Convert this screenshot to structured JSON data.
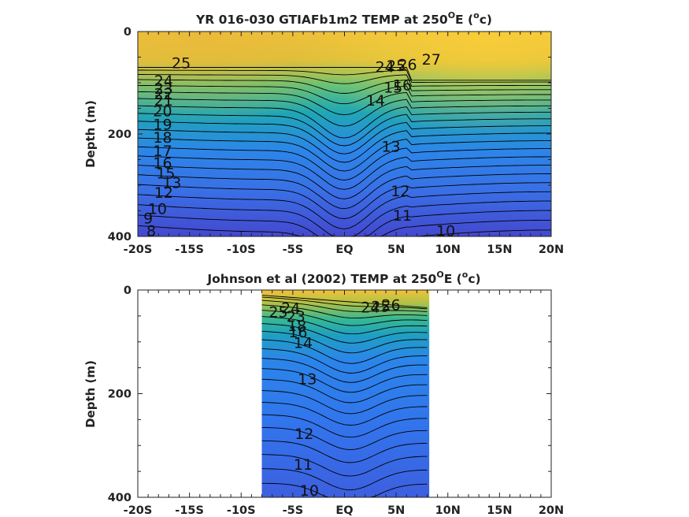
{
  "chart_data": [
    {
      "type": "contour",
      "title_main": "YR 016-030 GTIAFb1m2 TEMP at 250",
      "title_sup": "O",
      "title_mid": "E (",
      "title_unit_sup": "o",
      "title_end": "c)",
      "ylabel": "Depth (m)",
      "xlim": [
        -20,
        20
      ],
      "ylim": [
        0,
        400
      ],
      "y_reversed": true,
      "x_tick_values": [
        -20,
        -15,
        -10,
        -5,
        0,
        5,
        10,
        15,
        20
      ],
      "x_tick_labels": [
        "-20S",
        "-15S",
        "-10S",
        "-5S",
        "EQ",
        "5N",
        "10N",
        "15N",
        "20N"
      ],
      "y_tick_values": [
        0,
        200,
        400
      ],
      "y_tick_labels": [
        "0",
        "200",
        "400"
      ],
      "data_extent": [
        -20,
        20
      ],
      "contour_labels": [
        {
          "text": "25",
          "lat": -15.8,
          "depth": 62
        },
        {
          "text": "24",
          "lat": -17.5,
          "depth": 97
        },
        {
          "text": "23",
          "lat": -17.5,
          "depth": 112
        },
        {
          "text": "22",
          "lat": -17.5,
          "depth": 122
        },
        {
          "text": "21",
          "lat": -17.5,
          "depth": 135
        },
        {
          "text": "20",
          "lat": -17.6,
          "depth": 156
        },
        {
          "text": "19",
          "lat": -17.6,
          "depth": 182
        },
        {
          "text": "18",
          "lat": -17.6,
          "depth": 208
        },
        {
          "text": "17",
          "lat": -17.6,
          "depth": 234
        },
        {
          "text": "16",
          "lat": -17.6,
          "depth": 258
        },
        {
          "text": "15",
          "lat": -17.3,
          "depth": 278
        },
        {
          "text": "13",
          "lat": -16.7,
          "depth": 296
        },
        {
          "text": "12",
          "lat": -17.5,
          "depth": 315
        },
        {
          "text": "10",
          "lat": -18.1,
          "depth": 347
        },
        {
          "text": "9",
          "lat": -19.0,
          "depth": 365
        },
        {
          "text": "8",
          "lat": -18.7,
          "depth": 390
        },
        {
          "text": "24",
          "lat": 3.9,
          "depth": 70
        },
        {
          "text": "25",
          "lat": 5.0,
          "depth": 68
        },
        {
          "text": "26",
          "lat": 6.1,
          "depth": 65
        },
        {
          "text": "27",
          "lat": 8.4,
          "depth": 55
        },
        {
          "text": "15",
          "lat": 4.7,
          "depth": 110
        },
        {
          "text": "16",
          "lat": 5.6,
          "depth": 105
        },
        {
          "text": "14",
          "lat": 3.0,
          "depth": 135
        },
        {
          "text": "13",
          "lat": 4.5,
          "depth": 225
        },
        {
          "text": "12",
          "lat": 5.4,
          "depth": 312
        },
        {
          "text": "11",
          "lat": 5.6,
          "depth": 360
        },
        {
          "text": "10",
          "lat": 9.8,
          "depth": 390
        }
      ]
    },
    {
      "type": "contour",
      "title_main": "Johnson et al (2002) TEMP at 250",
      "title_sup": "O",
      "title_mid": "E (",
      "title_unit_sup": "o",
      "title_end": "c)",
      "ylabel": "Depth (m)",
      "xlim": [
        -20,
        20
      ],
      "ylim": [
        0,
        400
      ],
      "y_reversed": true,
      "x_tick_values": [
        -20,
        -15,
        -10,
        -5,
        0,
        5,
        10,
        15,
        20
      ],
      "x_tick_labels": [
        "-20S",
        "-15S",
        "-10S",
        "-5S",
        "EQ",
        "5N",
        "10N",
        "15N",
        "20N"
      ],
      "y_tick_values": [
        0,
        200,
        400
      ],
      "y_tick_labels": [
        "0",
        "200",
        "400"
      ],
      "data_extent": [
        -8,
        8.2
      ],
      "contour_labels": [
        {
          "text": "25",
          "lat": -6.4,
          "depth": 43
        },
        {
          "text": "24",
          "lat": -5.2,
          "depth": 36
        },
        {
          "text": "23",
          "lat": -4.7,
          "depth": 52
        },
        {
          "text": "18",
          "lat": -4.6,
          "depth": 70
        },
        {
          "text": "16",
          "lat": -4.5,
          "depth": 82
        },
        {
          "text": "14",
          "lat": -4.0,
          "depth": 103
        },
        {
          "text": "24",
          "lat": 2.5,
          "depth": 34
        },
        {
          "text": "25",
          "lat": 3.5,
          "depth": 33
        },
        {
          "text": "26",
          "lat": 4.5,
          "depth": 30
        },
        {
          "text": "13",
          "lat": -3.6,
          "depth": 173
        },
        {
          "text": "12",
          "lat": -3.9,
          "depth": 278
        },
        {
          "text": "11",
          "lat": -4.0,
          "depth": 338
        },
        {
          "text": "10",
          "lat": -3.4,
          "depth": 388
        }
      ]
    }
  ]
}
